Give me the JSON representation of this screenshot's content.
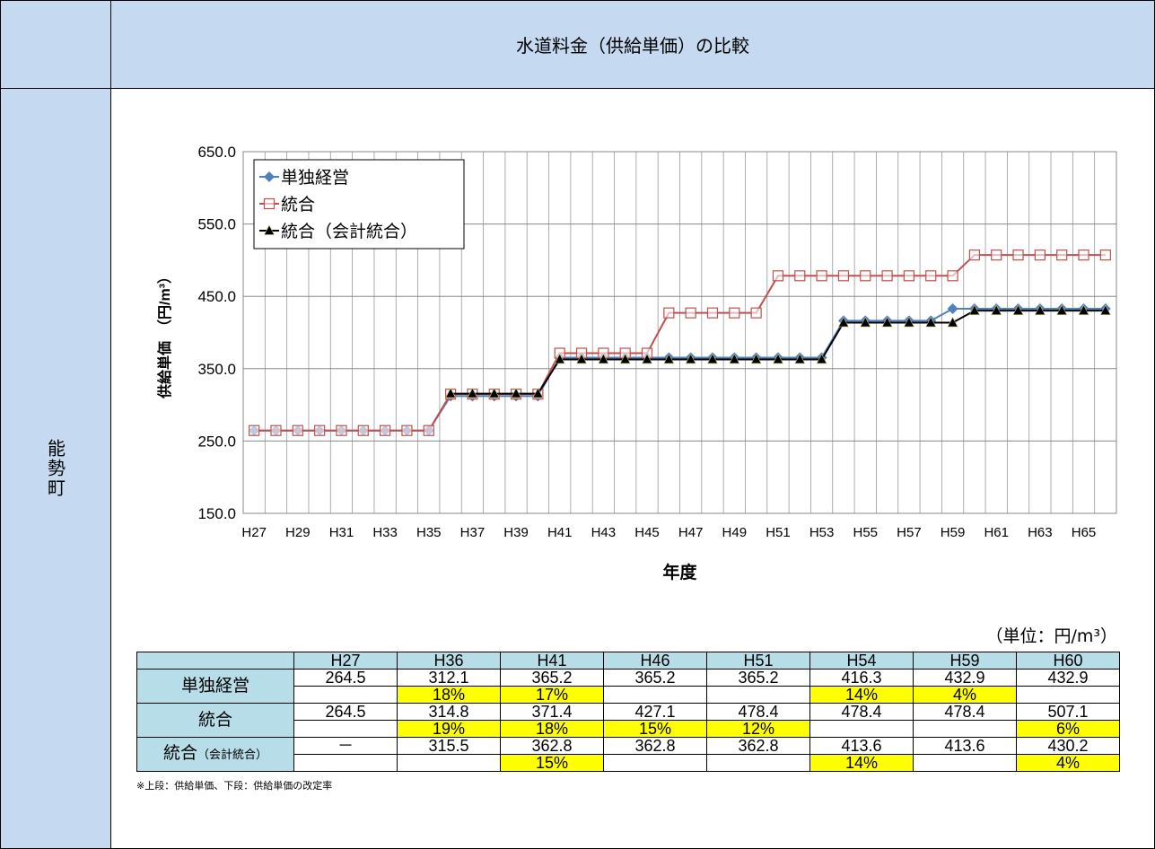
{
  "header": {
    "title": "水道料金（供給単価）の比較",
    "side_label": "能勢町"
  },
  "chart_data": {
    "type": "line",
    "x_label": "年度",
    "y_label": "供給単価　（円/m³）",
    "categories": [
      "H27",
      null,
      "H29",
      null,
      "H31",
      null,
      "H33",
      null,
      "H35",
      null,
      "H37",
      null,
      "H39",
      null,
      "H41",
      null,
      "H43",
      null,
      "H45",
      null,
      "H47",
      null,
      "H49",
      null,
      "H51",
      null,
      "H53",
      null,
      "H55",
      null,
      "H57",
      null,
      "H59",
      null,
      "H61",
      null,
      "H63",
      null,
      "H65",
      null
    ],
    "series": [
      {
        "name": "単独経営",
        "color": "#4f81bd",
        "marker": "diamond",
        "values": [
          264.5,
          264.5,
          264.5,
          264.5,
          264.5,
          264.5,
          264.5,
          264.5,
          264.5,
          312.1,
          312.1,
          312.1,
          312.1,
          312.1,
          365.2,
          365.2,
          365.2,
          365.2,
          365.2,
          365.2,
          365.2,
          365.2,
          365.2,
          365.2,
          365.2,
          365.2,
          365.2,
          416.3,
          416.3,
          416.3,
          416.3,
          416.3,
          432.9,
          432.9,
          432.9,
          432.9,
          432.9,
          432.9,
          432.9,
          432.9
        ]
      },
      {
        "name": "統合",
        "color": "#c0504d",
        "marker": "square",
        "values": [
          264.5,
          264.5,
          264.5,
          264.5,
          264.5,
          264.5,
          264.5,
          264.5,
          264.5,
          314.8,
          314.8,
          314.8,
          314.8,
          314.8,
          371.4,
          371.4,
          371.4,
          371.4,
          371.4,
          427.1,
          427.1,
          427.1,
          427.1,
          427.1,
          478.4,
          478.4,
          478.4,
          478.4,
          478.4,
          478.4,
          478.4,
          478.4,
          478.4,
          507.1,
          507.1,
          507.1,
          507.1,
          507.1,
          507.1,
          507.1
        ]
      },
      {
        "name": "統合（会計統合）",
        "color": "#000000",
        "marker": "triangle",
        "values": [
          null,
          null,
          null,
          null,
          null,
          null,
          null,
          null,
          null,
          315.5,
          315.5,
          315.5,
          315.5,
          315.5,
          362.8,
          362.8,
          362.8,
          362.8,
          362.8,
          362.8,
          362.8,
          362.8,
          362.8,
          362.8,
          362.8,
          362.8,
          362.8,
          413.6,
          413.6,
          413.6,
          413.6,
          413.6,
          413.6,
          430.2,
          430.2,
          430.2,
          430.2,
          430.2,
          430.2,
          430.2
        ]
      }
    ],
    "ylim": [
      150,
      650
    ],
    "yticks": [
      {
        "value": 150,
        "label": "150.0"
      },
      {
        "value": 250,
        "label": "250.0"
      },
      {
        "value": 350,
        "label": "350.0"
      },
      {
        "value": 450,
        "label": "450.0"
      },
      {
        "value": 550,
        "label": "550.0"
      },
      {
        "value": 650,
        "label": "650.0"
      }
    ],
    "grid": true,
    "legend": "upper left"
  },
  "table": {
    "unit": "（単位：円/m³）",
    "columns": [
      "H27",
      "H36",
      "H41",
      "H46",
      "H51",
      "H54",
      "H59",
      "H60"
    ],
    "rows": [
      {
        "label": "単独経営",
        "values": [
          264.5,
          312.1,
          365.2,
          365.2,
          365.2,
          416.3,
          432.9,
          432.9
        ],
        "rates": [
          null,
          "18%",
          "17%",
          null,
          null,
          "14%",
          "4%",
          null
        ]
      },
      {
        "label": "統合",
        "values": [
          264.5,
          314.8,
          371.4,
          427.1,
          478.4,
          478.4,
          478.4,
          507.1
        ],
        "rates": [
          null,
          "19%",
          "18%",
          "15%",
          "12%",
          null,
          null,
          "6%"
        ]
      },
      {
        "label": "統合",
        "label_note": "（会計統合）",
        "values": [
          "－",
          315.5,
          362.8,
          362.8,
          362.8,
          413.6,
          413.6,
          430.2
        ],
        "rates": [
          null,
          null,
          "15%",
          null,
          null,
          "14%",
          null,
          "4%"
        ]
      }
    ],
    "note": "※上段：供給単価、下段：供給単価の改定率"
  }
}
